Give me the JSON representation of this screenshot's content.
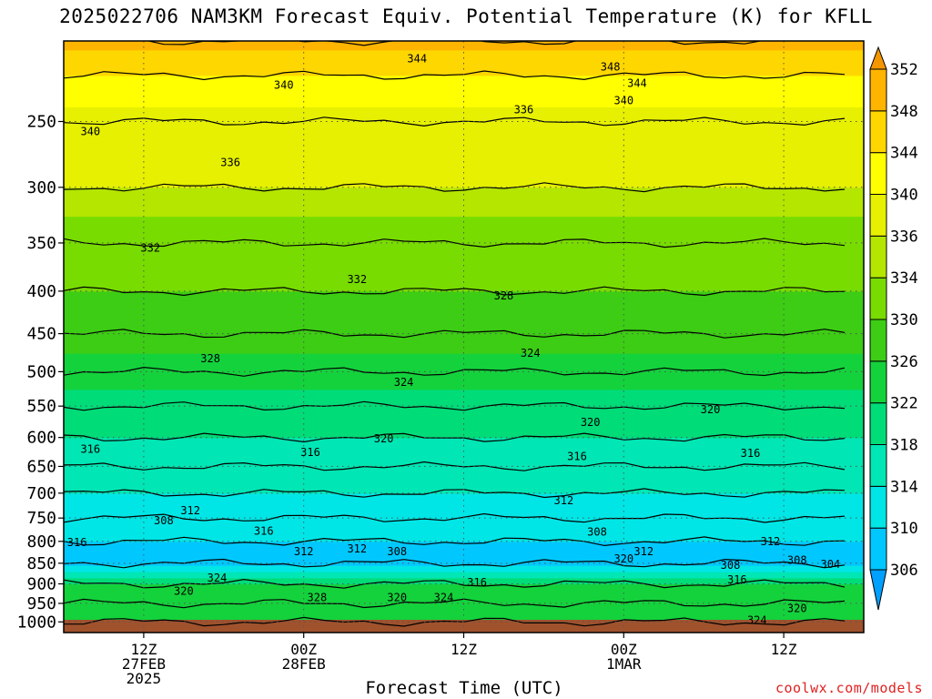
{
  "title": "2025022706 NAM3KM Forecast Equiv. Potential Temperature (K) for KFLL",
  "credit": "coolwx.com/models",
  "chart_data": {
    "type": "heatmap",
    "title": "2025022706 NAM3KM Forecast Equiv. Potential Temperature (K) for KFLL",
    "xlabel": "Forecast Time (UTC)",
    "ylabel": "",
    "x_ticks": [
      {
        "hour": 6,
        "lines": [
          "12Z",
          "27FEB",
          "2025"
        ]
      },
      {
        "hour": 18,
        "lines": [
          "00Z",
          "28FEB"
        ]
      },
      {
        "hour": 30,
        "lines": [
          "12Z"
        ]
      },
      {
        "hour": 42,
        "lines": [
          "00Z",
          "1MAR"
        ]
      },
      {
        "hour": 54,
        "lines": [
          "12Z"
        ]
      }
    ],
    "xlim_hours": [
      0,
      60
    ],
    "y_axis": "pressure (log-p, inverted)",
    "ylim": [
      1030,
      200
    ],
    "y_ticks": [
      250,
      300,
      350,
      400,
      450,
      500,
      550,
      600,
      650,
      700,
      750,
      800,
      850,
      900,
      950,
      1000
    ],
    "grid": true,
    "colorbar": {
      "placement": "right",
      "levels": [
        306,
        310,
        314,
        318,
        322,
        326,
        330,
        334,
        336,
        340,
        344,
        348,
        352
      ],
      "colors": [
        "#00a0ff",
        "#00c8ff",
        "#00e6e6",
        "#00e6b4",
        "#00dc78",
        "#14d23c",
        "#3ccd14",
        "#78dc00",
        "#b4e600",
        "#e6f000",
        "#ffff00",
        "#ffd700",
        "#ffb400",
        "#f39600"
      ]
    },
    "level_profile": [
      {
        "p": 1000,
        "theta_e": 326
      },
      {
        "p": 950,
        "theta_e": 324
      },
      {
        "p": 900,
        "theta_e": 322
      },
      {
        "p": 850,
        "theta_e": 308
      },
      {
        "p": 800,
        "theta_e": 310
      },
      {
        "p": 750,
        "theta_e": 312
      },
      {
        "p": 700,
        "theta_e": 314
      },
      {
        "p": 650,
        "theta_e": 316
      },
      {
        "p": 600,
        "theta_e": 318
      },
      {
        "p": 550,
        "theta_e": 320
      },
      {
        "p": 500,
        "theta_e": 324
      },
      {
        "p": 450,
        "theta_e": 328
      },
      {
        "p": 400,
        "theta_e": 330
      },
      {
        "p": 350,
        "theta_e": 332
      },
      {
        "p": 300,
        "theta_e": 336
      },
      {
        "p": 250,
        "theta_e": 338
      },
      {
        "p": 220,
        "theta_e": 344
      },
      {
        "p": 200,
        "theta_e": 350
      }
    ],
    "contour_labels": [
      {
        "text": "344",
        "hour": 26.5,
        "p": 210
      },
      {
        "text": "348",
        "hour": 41,
        "p": 215
      },
      {
        "text": "344",
        "hour": 43,
        "p": 225
      },
      {
        "text": "340",
        "hour": 16.5,
        "p": 226
      },
      {
        "text": "340",
        "hour": 42,
        "p": 236
      },
      {
        "text": "336",
        "hour": 34.5,
        "p": 242
      },
      {
        "text": "340",
        "hour": 2,
        "p": 257
      },
      {
        "text": "336",
        "hour": 12.5,
        "p": 280
      },
      {
        "text": "332",
        "hour": 6.5,
        "p": 355
      },
      {
        "text": "332",
        "hour": 22,
        "p": 387
      },
      {
        "text": "328",
        "hour": 33,
        "p": 405
      },
      {
        "text": "328",
        "hour": 11,
        "p": 482
      },
      {
        "text": "324",
        "hour": 35,
        "p": 475
      },
      {
        "text": "324",
        "hour": 25.5,
        "p": 515
      },
      {
        "text": "320",
        "hour": 48.5,
        "p": 555
      },
      {
        "text": "320",
        "hour": 39.5,
        "p": 575
      },
      {
        "text": "320",
        "hour": 24,
        "p": 602
      },
      {
        "text": "316",
        "hour": 2,
        "p": 620
      },
      {
        "text": "316",
        "hour": 18.5,
        "p": 625
      },
      {
        "text": "316",
        "hour": 38.5,
        "p": 632
      },
      {
        "text": "316",
        "hour": 51.5,
        "p": 627
      },
      {
        "text": "312",
        "hour": 37.5,
        "p": 715
      },
      {
        "text": "312",
        "hour": 9.5,
        "p": 735
      },
      {
        "text": "308",
        "hour": 7.5,
        "p": 755
      },
      {
        "text": "316",
        "hour": 15,
        "p": 778
      },
      {
        "text": "308",
        "hour": 40,
        "p": 780
      },
      {
        "text": "312",
        "hour": 53,
        "p": 800
      },
      {
        "text": "316",
        "hour": 1,
        "p": 802
      },
      {
        "text": "312",
        "hour": 18,
        "p": 823
      },
      {
        "text": "312",
        "hour": 22,
        "p": 817
      },
      {
        "text": "308",
        "hour": 25,
        "p": 823
      },
      {
        "text": "312",
        "hour": 43.5,
        "p": 823
      },
      {
        "text": "320",
        "hour": 42,
        "p": 840
      },
      {
        "text": "308",
        "hour": 55,
        "p": 843
      },
      {
        "text": "304",
        "hour": 57.5,
        "p": 852
      },
      {
        "text": "308",
        "hour": 50,
        "p": 855
      },
      {
        "text": "324",
        "hour": 11.5,
        "p": 885
      },
      {
        "text": "316",
        "hour": 50.5,
        "p": 890
      },
      {
        "text": "316",
        "hour": 31,
        "p": 897
      },
      {
        "text": "320",
        "hour": 9,
        "p": 918
      },
      {
        "text": "328",
        "hour": 19,
        "p": 935
      },
      {
        "text": "320",
        "hour": 25,
        "p": 935
      },
      {
        "text": "324",
        "hour": 28.5,
        "p": 935
      },
      {
        "text": "320",
        "hour": 55,
        "p": 963
      },
      {
        "text": "324",
        "hour": 52,
        "p": 995
      }
    ]
  }
}
